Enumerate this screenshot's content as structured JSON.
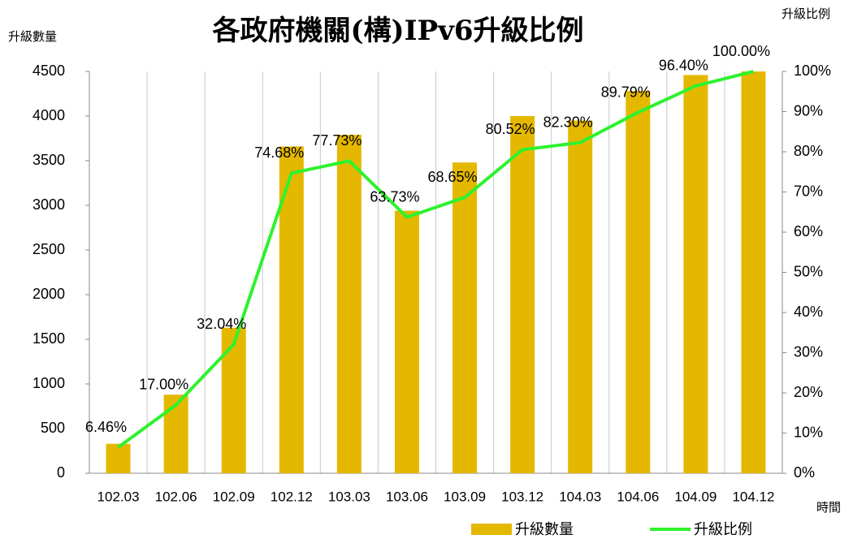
{
  "chart_data": {
    "type": "bar+line",
    "title": "各政府機關(構)IPv6升級比例",
    "y_label": "升級數量",
    "y2_label": "升級比例",
    "x_label": "時間",
    "categories": [
      "102.03",
      "102.06",
      "102.09",
      "102.12",
      "103.03",
      "103.06",
      "103.09",
      "103.12",
      "104.03",
      "104.06",
      "104.09",
      "104.12"
    ],
    "series": [
      {
        "name": "升級數量",
        "type": "bar",
        "color": "#e5b800",
        "axis": "y",
        "values": [
          330,
          880,
          1630,
          3660,
          3790,
          2940,
          3480,
          4000,
          3950,
          4280,
          4460,
          4500
        ]
      },
      {
        "name": "升級比例",
        "type": "line",
        "color": "#2ef22e",
        "axis": "y2",
        "values": [
          6.46,
          17.0,
          32.04,
          74.68,
          77.73,
          63.73,
          68.65,
          80.52,
          82.3,
          89.79,
          96.4,
          100.0
        ],
        "value_labels": [
          "6.46%",
          "17.00%",
          "32.04%",
          "74.68%",
          "77.73%",
          "63.73%",
          "68.65%",
          "80.52%",
          "82.30%",
          "89.79%",
          "96.40%",
          "100.00%"
        ]
      }
    ],
    "ylim": [
      0,
      4500
    ],
    "yticks": [
      0,
      500,
      1000,
      1500,
      2000,
      2500,
      3000,
      3500,
      4000,
      4500
    ],
    "y2lim": [
      0,
      100
    ],
    "y2ticks": [
      {
        "value": 0,
        "label": "0%"
      },
      {
        "value": 10,
        "label": "10%"
      },
      {
        "value": 20,
        "label": "20%"
      },
      {
        "value": 30,
        "label": "30%"
      },
      {
        "value": 40,
        "label": "40%"
      },
      {
        "value": 50,
        "label": "50%"
      },
      {
        "value": 60,
        "label": "60%"
      },
      {
        "value": 70,
        "label": "70%"
      },
      {
        "value": 80,
        "label": "80%"
      },
      {
        "value": 90,
        "label": "90%"
      },
      {
        "value": 100,
        "label": "100%"
      }
    ],
    "grid": true,
    "legend": "bottom-right"
  }
}
